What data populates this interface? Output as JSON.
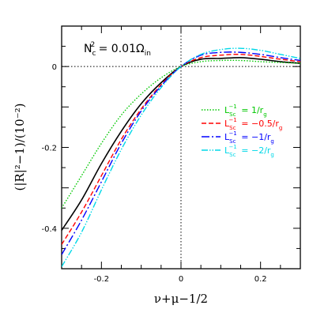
{
  "chart_data": {
    "type": "line",
    "xlabel": "ν+μ−1/2",
    "ylabel": "(|R|²−1)/(10⁻²)",
    "annotation_lhs": "N",
    "annotation_lhs_sub": "c",
    "annotation_lhs_sup": "2",
    "annotation_rhs": " = 0.01Ω",
    "annotation_rhs_sub": "in",
    "xlim": [
      -0.3,
      0.3
    ],
    "ylim": [
      -0.5,
      0.1
    ],
    "xticks": [
      {
        "value": -0.2,
        "label": "-0.2"
      },
      {
        "value": 0,
        "label": "0"
      },
      {
        "value": 0.2,
        "label": "0.2"
      }
    ],
    "yticks": [
      {
        "value": 0,
        "label": "0"
      },
      {
        "value": -0.2,
        "label": "-0.2"
      },
      {
        "value": -0.4,
        "label": "-0.4"
      }
    ],
    "series": [
      {
        "name": "",
        "color": "#000000",
        "dash": "",
        "x": [
          -0.3,
          -0.25,
          -0.2,
          -0.15,
          -0.1,
          -0.05,
          0,
          0.05,
          0.1,
          0.15,
          0.2,
          0.25,
          0.3
        ],
        "y": [
          -0.405,
          -0.33,
          -0.24,
          -0.16,
          -0.092,
          -0.04,
          0,
          0.018,
          0.02,
          0.022,
          0.018,
          0.012,
          0.008
        ]
      },
      {
        "name": "L_Sc^{-1} = 1/r_g",
        "legend_main": "L",
        "legend_sub": "Sc",
        "legend_sup": "−1",
        "legend_value": " = 1/r",
        "legend_value_sub": "g",
        "color": "#00c800",
        "dash": "1.5,2",
        "x": [
          -0.3,
          -0.25,
          -0.2,
          -0.15,
          -0.1,
          -0.05,
          0,
          0.05,
          0.1,
          0.15,
          0.2,
          0.25,
          0.3
        ],
        "y": [
          -0.35,
          -0.27,
          -0.19,
          -0.12,
          -0.068,
          -0.028,
          0,
          0.012,
          0.015,
          0.015,
          0.012,
          0.01,
          0.008
        ]
      },
      {
        "name": "L_Sc^{-1} = -0.5/r_g",
        "legend_main": "L",
        "legend_sub": "Sc",
        "legend_sup": "−1",
        "legend_value": " = −0.5/r",
        "legend_value_sub": "g",
        "color": "#ff0000",
        "dash": "6,3",
        "x": [
          -0.3,
          -0.25,
          -0.2,
          -0.15,
          -0.1,
          -0.05,
          0,
          0.05,
          0.1,
          0.15,
          0.2,
          0.25,
          0.3
        ],
        "y": [
          -0.44,
          -0.36,
          -0.27,
          -0.18,
          -0.105,
          -0.045,
          0,
          0.022,
          0.028,
          0.03,
          0.025,
          0.018,
          0.012
        ]
      },
      {
        "name": "L_Sc^{-1} = -1/r_g",
        "legend_main": "L",
        "legend_sub": "Sc",
        "legend_sup": "−1",
        "legend_value": " = −1/r",
        "legend_value_sub": "g",
        "color": "#0000ff",
        "dash": "10,3,2,3",
        "x": [
          -0.3,
          -0.25,
          -0.2,
          -0.15,
          -0.1,
          -0.05,
          0,
          0.05,
          0.1,
          0.15,
          0.2,
          0.25,
          0.3
        ],
        "y": [
          -0.465,
          -0.38,
          -0.285,
          -0.19,
          -0.11,
          -0.048,
          0,
          0.028,
          0.035,
          0.035,
          0.03,
          0.022,
          0.015
        ]
      },
      {
        "name": "L_Sc^{-1} = -2/r_g",
        "legend_main": "L",
        "legend_sub": "Sc",
        "legend_sup": "−1",
        "legend_value": " = −2/r",
        "legend_value_sub": "g",
        "color": "#00d8e8",
        "dash": "8,2,1.5,2,1.5,2",
        "x": [
          -0.3,
          -0.25,
          -0.2,
          -0.15,
          -0.1,
          -0.05,
          0,
          0.05,
          0.1,
          0.15,
          0.2,
          0.25,
          0.3
        ],
        "y": [
          -0.495,
          -0.41,
          -0.305,
          -0.205,
          -0.12,
          -0.052,
          0,
          0.03,
          0.042,
          0.045,
          0.04,
          0.03,
          0.02
        ]
      }
    ],
    "reference_lines": {
      "x": 0,
      "y": 0,
      "style": "dotted"
    }
  }
}
